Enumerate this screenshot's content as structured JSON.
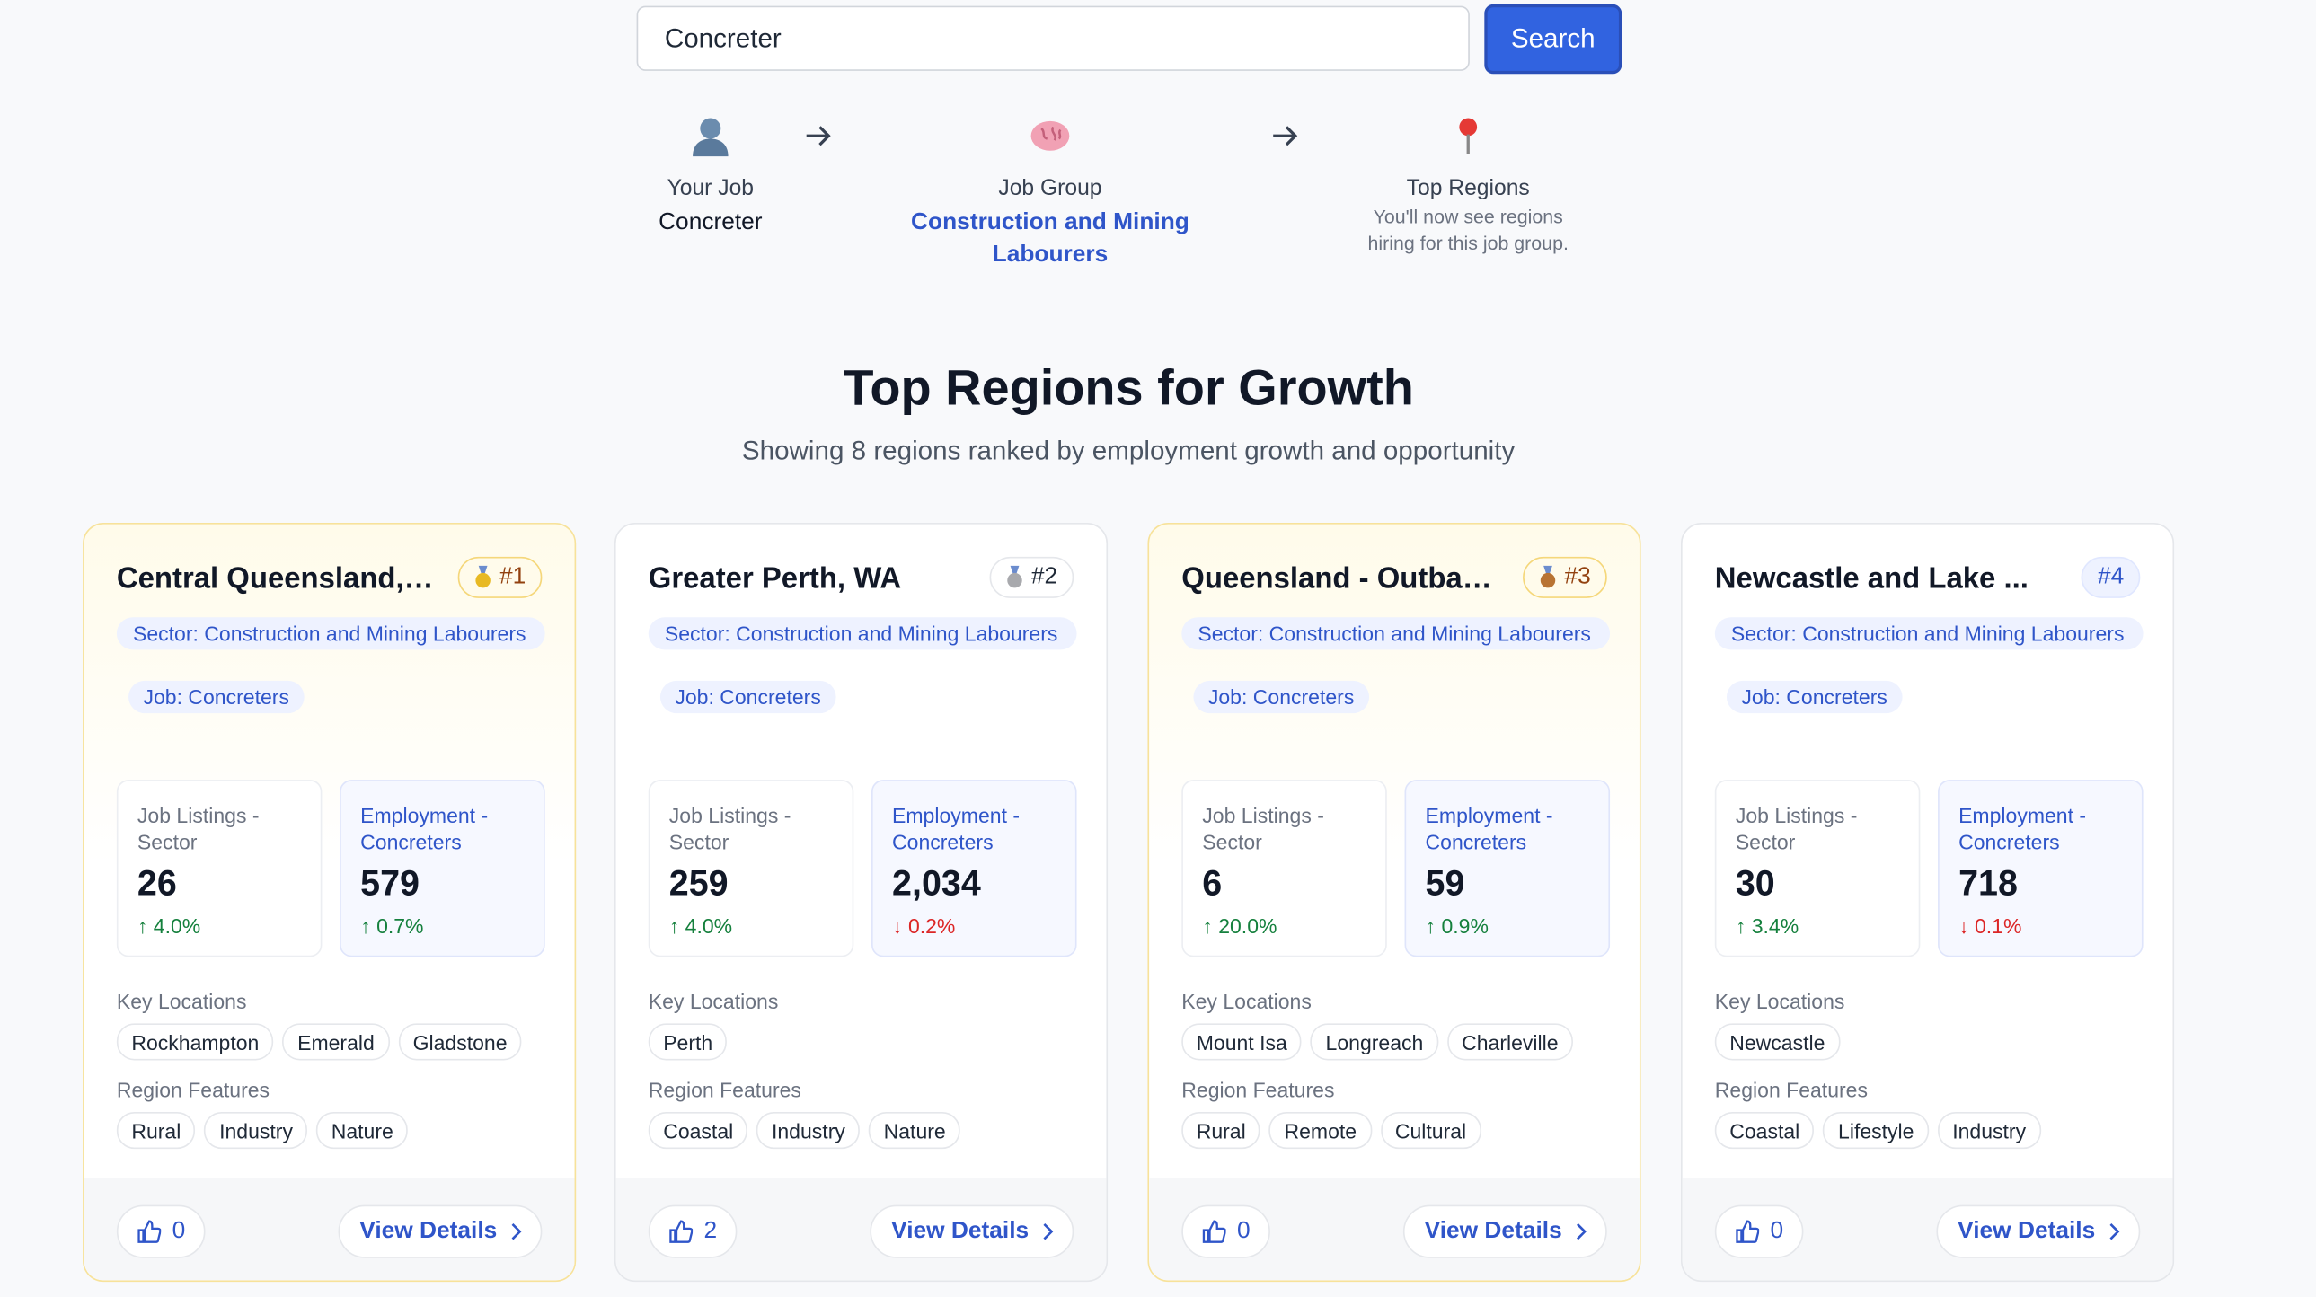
{
  "search": {
    "query": "Concreter",
    "button": "Search"
  },
  "steps": [
    {
      "label": "Your Job",
      "value": "Concreter"
    },
    {
      "label": "Job Group",
      "value": "Construction and Mining Labourers"
    },
    {
      "label": "Top Regions",
      "description": "You'll now see regions hiring for this job group."
    }
  ],
  "heading": "Top Regions for Growth",
  "subheading": "Showing 8 regions ranked by employment growth and opportunity",
  "cards": [
    {
      "title": "Central Queensland, ...",
      "rank": "#1",
      "sector": "Sector: Construction and Mining Labourers",
      "job": "Job: Concreters",
      "stats": [
        {
          "label": "Job Listings - Sector",
          "value": "26",
          "change": "↑ 4.0%"
        },
        {
          "label": "Employment - Concreters",
          "value": "579",
          "change": "↑ 0.7%"
        }
      ],
      "key_locations_label": "Key Locations",
      "key_locations": [
        "Rockhampton",
        "Emerald",
        "Gladstone"
      ],
      "features_label": "Region Features",
      "features": [
        "Rural",
        "Industry",
        "Nature"
      ],
      "likes": "0",
      "action": "View Details"
    },
    {
      "title": "Greater Perth, WA",
      "rank": "#2",
      "sector": "Sector: Construction and Mining Labourers",
      "job": "Job: Concreters",
      "stats": [
        {
          "label": "Job Listings - Sector",
          "value": "259",
          "change": "↑ 4.0%"
        },
        {
          "label": "Employment - Concreters",
          "value": "2,034",
          "change": "↓ 0.2%"
        }
      ],
      "key_locations_label": "Key Locations",
      "key_locations": [
        "Perth"
      ],
      "features_label": "Region Features",
      "features": [
        "Coastal",
        "Industry",
        "Nature"
      ],
      "likes": "2",
      "action": "View Details"
    },
    {
      "title": "Queensland - Outbac...",
      "rank": "#3",
      "sector": "Sector: Construction and Mining Labourers",
      "job": "Job: Concreters",
      "stats": [
        {
          "label": "Job Listings - Sector",
          "value": "6",
          "change": "↑ 20.0%"
        },
        {
          "label": "Employment - Concreters",
          "value": "59",
          "change": "↑ 0.9%"
        }
      ],
      "key_locations_label": "Key Locations",
      "key_locations": [
        "Mount Isa",
        "Longreach",
        "Charleville"
      ],
      "features_label": "Region Features",
      "features": [
        "Rural",
        "Remote",
        "Cultural"
      ],
      "likes": "0",
      "action": "View Details"
    },
    {
      "title": "Newcastle and Lake ...",
      "rank": "#4",
      "sector": "Sector: Construction and Mining Labourers",
      "job": "Job: Concreters",
      "stats": [
        {
          "label": "Job Listings - Sector",
          "value": "30",
          "change": "↑ 3.4%"
        },
        {
          "label": "Employment - Concreters",
          "value": "718",
          "change": "↓ 0.1%"
        }
      ],
      "key_locations_label": "Key Locations",
      "key_locations": [
        "Newcastle"
      ],
      "features_label": "Region Features",
      "features": [
        "Coastal",
        "Lifestyle",
        "Industry"
      ],
      "likes": "0",
      "action": "View Details"
    }
  ]
}
